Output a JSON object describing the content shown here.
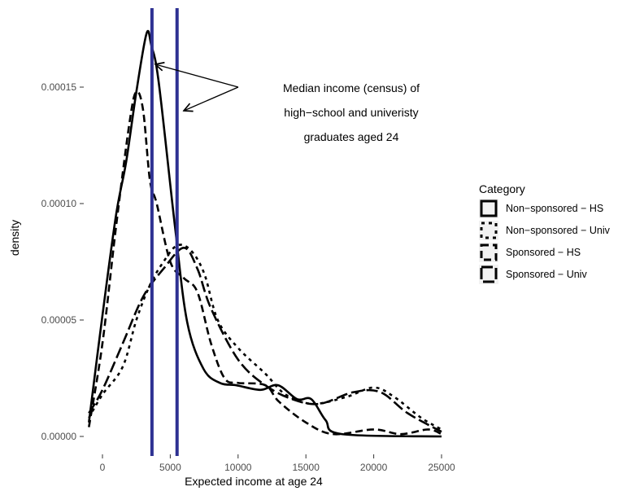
{
  "chart_data": {
    "type": "line",
    "title": "",
    "xlabel": "Expected income at age 24",
    "ylabel": "density",
    "xlim": [
      -1500,
      25500
    ],
    "ylim": [
      -4e-06,
      0.000184
    ],
    "x_ticks": [
      0,
      5000,
      10000,
      15000,
      20000,
      25000
    ],
    "x_tick_labels": [
      "0",
      "5000",
      "10000",
      "15000",
      "20000",
      "25000"
    ],
    "y_ticks": [
      0,
      5e-05,
      0.0001,
      0.00015
    ],
    "y_tick_labels": [
      "0.00000",
      "0.00005",
      "0.00010",
      "0.00015"
    ],
    "grid": false,
    "legend": {
      "title": "Category",
      "placement": "right"
    },
    "series": [
      {
        "name": "Non−sponsored − HS",
        "style": "solid",
        "points": [
          [
            -1000,
            6e-06
          ],
          [
            0,
            5.2e-05
          ],
          [
            1000,
            9.5e-05
          ],
          [
            1750,
            0.000118
          ],
          [
            2500,
            0.000148
          ],
          [
            3250,
            0.000173
          ],
          [
            3600,
            0.000168
          ],
          [
            4150,
            0.000152
          ],
          [
            5350,
            9e-05
          ],
          [
            6250,
            4.9e-05
          ],
          [
            7450,
            2.9e-05
          ],
          [
            8650,
            2.3e-05
          ],
          [
            9850,
            2.2e-05
          ],
          [
            11650,
            2e-05
          ],
          [
            12950,
            2.2e-05
          ],
          [
            14350,
            1.6e-05
          ],
          [
            15400,
            1.6e-05
          ],
          [
            16450,
            7e-06
          ],
          [
            17650,
            1e-06
          ],
          [
            25000,
            0
          ]
        ]
      },
      {
        "name": "Non−sponsored − Univ",
        "style": "dotted",
        "points": [
          [
            -1000,
            8e-06
          ],
          [
            0,
            1.8e-05
          ],
          [
            1500,
            3e-05
          ],
          [
            2500,
            5e-05
          ],
          [
            3500,
            6.5e-05
          ],
          [
            4500,
            7.5e-05
          ],
          [
            5500,
            8.2e-05
          ],
          [
            6500,
            8e-05
          ],
          [
            7500,
            7e-05
          ],
          [
            8500,
            5e-05
          ],
          [
            10000,
            3.8e-05
          ],
          [
            12000,
            2.7e-05
          ],
          [
            13500,
            1.8e-05
          ],
          [
            15500,
            1.4e-05
          ],
          [
            18000,
            1.7e-05
          ],
          [
            20000,
            2.1e-05
          ],
          [
            21500,
            1.7e-05
          ],
          [
            23500,
            8e-06
          ],
          [
            25000,
            3e-06
          ]
        ]
      },
      {
        "name": "Sponsored   − HS",
        "style": "dashed",
        "points": [
          [
            -1000,
            4e-06
          ],
          [
            0,
            4e-05
          ],
          [
            1000,
            9e-05
          ],
          [
            2000,
            0.000135
          ],
          [
            2500,
            0.000148
          ],
          [
            3000,
            0.00014
          ],
          [
            3500,
            0.00011
          ],
          [
            4000,
            0.0001
          ],
          [
            5000,
            7.5e-05
          ],
          [
            6000,
            6.8e-05
          ],
          [
            7000,
            6.2e-05
          ],
          [
            8000,
            4e-05
          ],
          [
            9000,
            2.5e-05
          ],
          [
            10000,
            2.3e-05
          ],
          [
            12000,
            2.2e-05
          ],
          [
            13000,
            1.5e-05
          ],
          [
            15000,
            6e-06
          ],
          [
            17000,
            1e-06
          ],
          [
            20000,
            3e-06
          ],
          [
            22000,
            1e-06
          ],
          [
            24000,
            3e-06
          ],
          [
            25000,
            1e-06
          ]
        ]
      },
      {
        "name": "Sponsored   − Univ",
        "style": "longdash",
        "points": [
          [
            -1000,
            1e-05
          ],
          [
            0,
            2e-05
          ],
          [
            1500,
            4e-05
          ],
          [
            3000,
            6e-05
          ],
          [
            4500,
            7.2e-05
          ],
          [
            6000,
            8.1e-05
          ],
          [
            7000,
            7.2e-05
          ],
          [
            8000,
            5.5e-05
          ],
          [
            10000,
            3.3e-05
          ],
          [
            12000,
            2.2e-05
          ],
          [
            14000,
            1.6e-05
          ],
          [
            16000,
            1.4e-05
          ],
          [
            18500,
            1.9e-05
          ],
          [
            20500,
            1.9e-05
          ],
          [
            22500,
            1e-05
          ],
          [
            25000,
            2e-06
          ]
        ]
      }
    ],
    "vlines": [
      3650,
      5500
    ],
    "vline_color": "#2e3192",
    "annotation": {
      "lines": [
        "Median income (census) of",
        "high−school and univeristy",
        "graduates aged 24"
      ]
    }
  }
}
